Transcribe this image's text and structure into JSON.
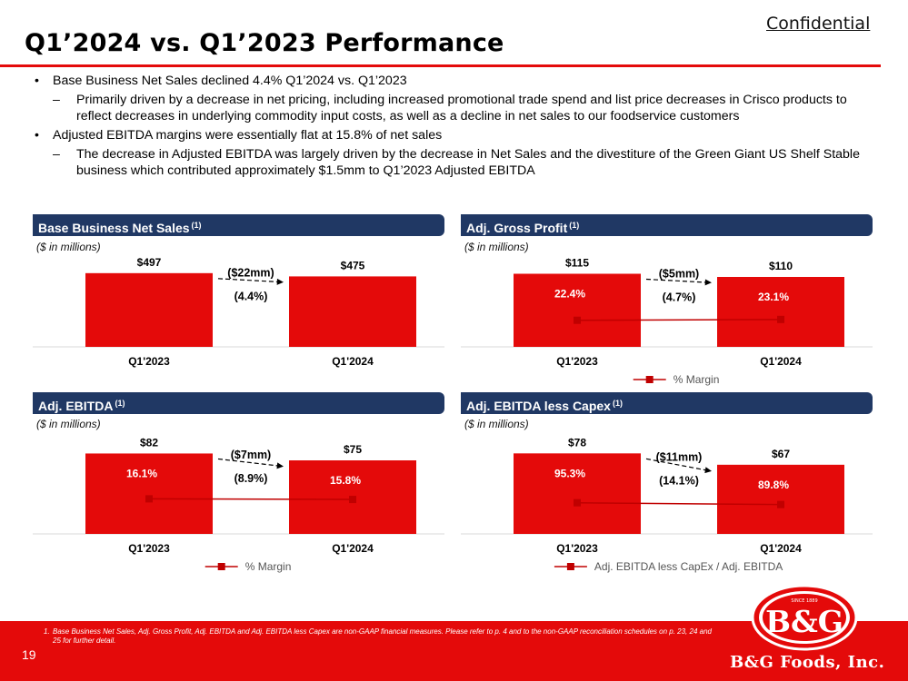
{
  "header": {
    "confidential": "Confidential",
    "title": "Q1’2024 vs. Q1’2023 Performance"
  },
  "bullets": [
    {
      "level": 1,
      "text": "Base Business Net Sales declined 4.4% Q1’2024 vs. Q1’2023"
    },
    {
      "level": 2,
      "text": "Primarily driven by a decrease in net pricing, including increased promotional trade spend and list price decreases in Crisco products to reflect decreases in underlying commodity input costs, as well as a decline in net sales to our foodservice customers"
    },
    {
      "level": 1,
      "text": "Adjusted EBITDA margins were essentially flat at 15.8% of net sales"
    },
    {
      "level": 2,
      "text": "The decrease in Adjusted EBITDA was largely driven by the decrease in Net Sales and the divestiture of the Green Giant US Shelf Stable business which contributed approximately $1.5mm to Q1’2023 Adjusted EBITDA"
    }
  ],
  "panels": {
    "net_sales": {
      "title": "Base Business Net Sales",
      "sup": "(1)",
      "units": "($ in millions)"
    },
    "gross_profit": {
      "title": "Adj. Gross Profit",
      "sup": "(1)",
      "units": "($ in millions)"
    },
    "ebitda": {
      "title": "Adj. EBITDA",
      "sup": "(1)",
      "units": "($ in millions)"
    },
    "ebitda_capex": {
      "title": "Adj. EBITDA less Capex",
      "sup": "(1)",
      "units": "($ in millions)"
    }
  },
  "chart_data": [
    {
      "id": "net_sales",
      "type": "bar",
      "categories": [
        "Q1'2023",
        "Q1'2024"
      ],
      "values": [
        497,
        475
      ],
      "value_labels": [
        "$497",
        "$475"
      ],
      "change_labels": [
        "($22mm)",
        "(4.4%)"
      ],
      "ylim": [
        0,
        600
      ],
      "bar_color": "#e40a0a",
      "line": null,
      "legend": null
    },
    {
      "id": "gross_profit",
      "type": "bar",
      "categories": [
        "Q1'2023",
        "Q1'2024"
      ],
      "values": [
        115,
        110
      ],
      "value_labels": [
        "$115",
        "$110"
      ],
      "change_labels": [
        "($5mm)",
        "(4.7%)"
      ],
      "ylim": [
        0,
        140
      ],
      "bar_color": "#e40a0a",
      "line": {
        "name": "% Margin",
        "values": [
          22.4,
          23.1
        ],
        "labels": [
          "22.4%",
          "23.1%"
        ],
        "ylim": [
          0,
          75
        ],
        "color": "#c00000"
      },
      "legend": "% Margin"
    },
    {
      "id": "ebitda",
      "type": "bar",
      "categories": [
        "Q1'2023",
        "Q1'2024"
      ],
      "values": [
        82,
        75
      ],
      "value_labels": [
        "$82",
        "$75"
      ],
      "change_labels": [
        "($7mm)",
        "(8.9%)"
      ],
      "ylim": [
        0,
        100
      ],
      "bar_color": "#e40a0a",
      "line": {
        "name": "% Margin",
        "values": [
          16.1,
          15.8
        ],
        "labels": [
          "16.1%",
          "15.8%"
        ],
        "ylim": [
          0,
          45
        ],
        "color": "#c00000"
      },
      "legend": "% Margin"
    },
    {
      "id": "ebitda_capex",
      "type": "bar",
      "categories": [
        "Q1'2023",
        "Q1'2024"
      ],
      "values": [
        78,
        67
      ],
      "value_labels": [
        "$78",
        "$67"
      ],
      "change_labels": [
        "($11mm)",
        "(14.1%)"
      ],
      "ylim": [
        0,
        95
      ],
      "bar_color": "#e40a0a",
      "line": {
        "name": "Adj. EBITDA less CapEx / Adj. EBITDA",
        "values": [
          95.3,
          89.8
        ],
        "labels": [
          "95.3%",
          "89.8%"
        ],
        "ylim": [
          0,
          300
        ],
        "color": "#c00000"
      },
      "legend": "Adj. EBITDA less CapEx / Adj. EBITDA"
    }
  ],
  "footer": {
    "footnote_number": "1.",
    "footnote": "Base Business Net Sales, Adj. Gross Profit, Adj. EBITDA and Adj. EBITDA less Capex are non-GAAP financial measures. Please refer to p. 4 and to the non-GAAP reconciliation schedules on p. 23, 24 and 25 for further detail.",
    "page_number": "19",
    "company": "B&G Foods, Inc.",
    "logo_text": "B&G",
    "logo_since": "SINCE 1889"
  },
  "colors": {
    "accent_red": "#e40a0a",
    "navy": "#203864",
    "marker": "#c00000"
  }
}
